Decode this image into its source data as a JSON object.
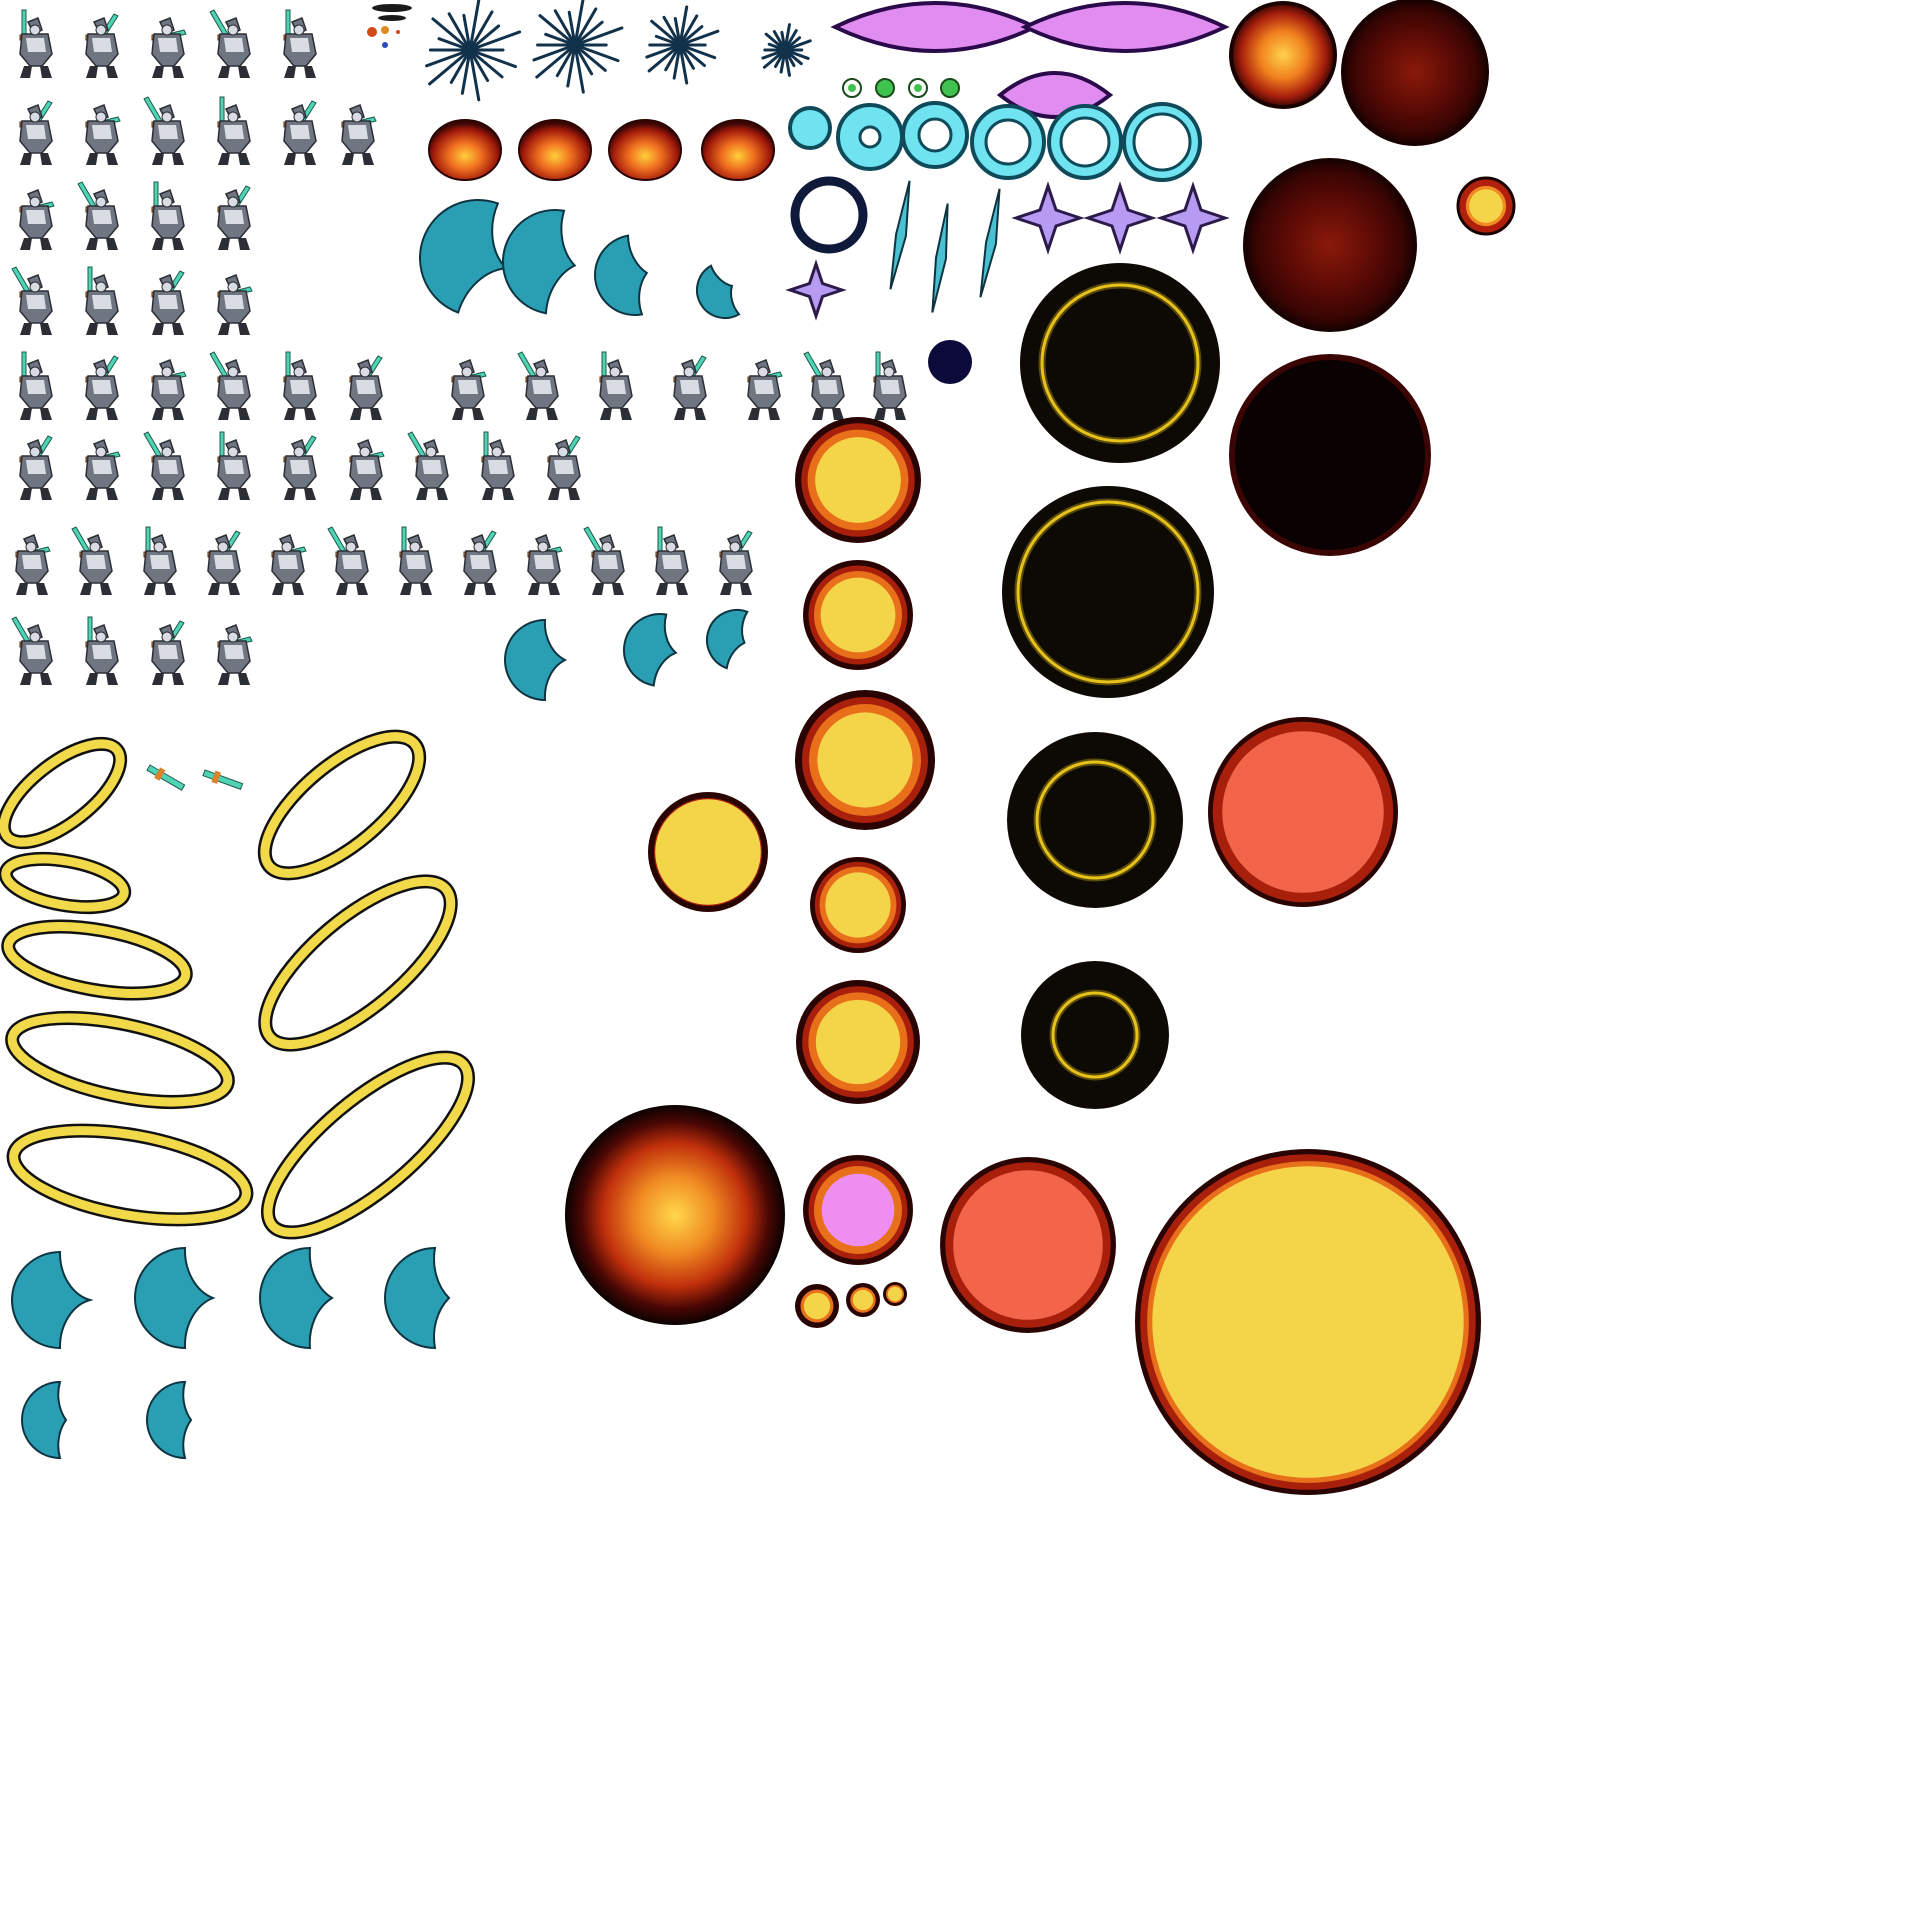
{
  "sheet": {
    "background": "#ffffff",
    "knight_rows": [
      5,
      6,
      4,
      4,
      13,
      9,
      12,
      4
    ],
    "knight_colors": {
      "armor_dark": "#2b2e35",
      "armor_mid": "#6f7682",
      "armor_light": "#d9dde3",
      "sword": "#4fd3b5",
      "sword_light": "#9ff0dc",
      "hilt": "#d9822b"
    },
    "crescent_colors": {
      "outline": "#0d3440",
      "fill": "#2a9fb3",
      "highlight": "#7fe0ec"
    },
    "ring_colors": {
      "outline": "#111111",
      "fill": "#f2d94a"
    },
    "orb_colors": {
      "core": "#f4d54a",
      "salmon": "#f2654a",
      "pink": "#ee8ef0",
      "dark": "#0d0a06",
      "deep_red": "#5a0a05",
      "orange": "#e8701a",
      "glow_ring": "#e6c21a"
    },
    "burst_color": "#12314a",
    "spark_colors": {
      "outline": "#2b1a4a",
      "fill": "#b79bf2",
      "highlight": "#ffffff"
    },
    "eye_colors": {
      "outline": "#2a0a4a",
      "fill": "#e08cf0"
    },
    "gem_color": "#3fc24f",
    "cyan_ring_colors": {
      "outer": "#0f4a5a",
      "fill": "#6fe3f0",
      "glow": "#b5f6fb"
    },
    "navy_dot": "#0c0a3a",
    "debris_colors": [
      "#1a1a1a",
      "#d24a1a",
      "#e08a20",
      "#2a4ac0"
    ]
  }
}
